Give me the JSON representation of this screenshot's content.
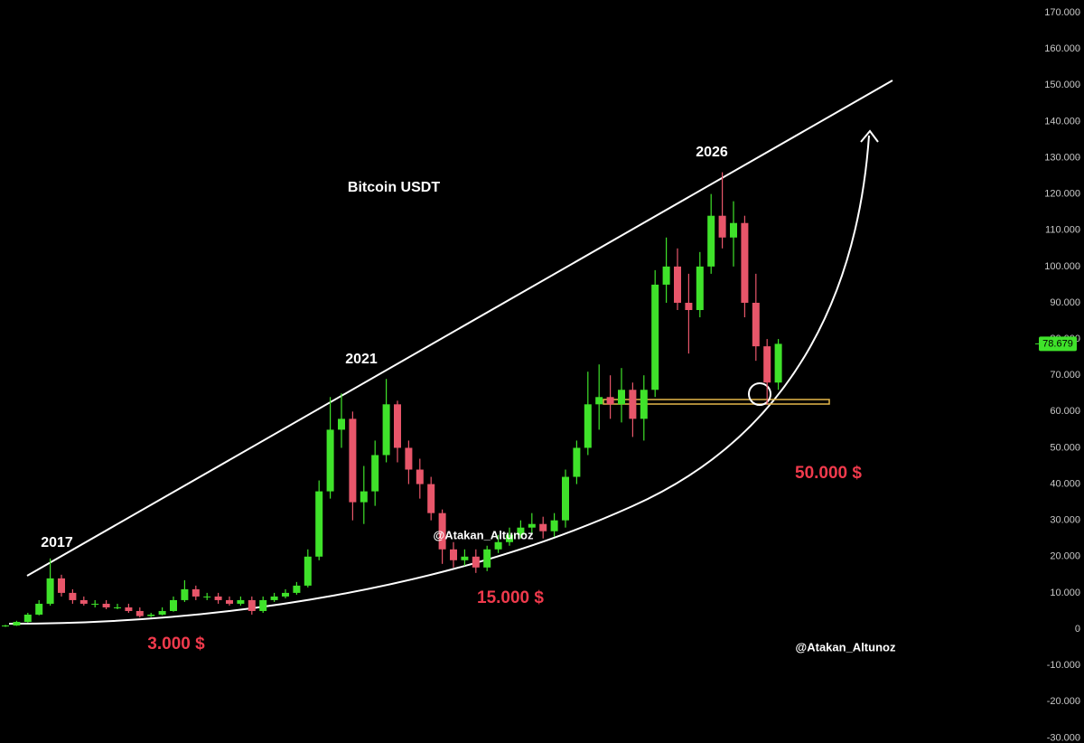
{
  "chart_data": {
    "type": "candlestick",
    "title": "Bitcoin USDT",
    "annotations": [
      "2017",
      "2021",
      "2026"
    ],
    "price_notes": [
      "3.000 $",
      "15.000 $",
      "50.000 $"
    ],
    "watermarks": [
      "@Atakan_Altunoz",
      "@Atakan_Altunoz"
    ],
    "up_color": "#3fe22a",
    "down_color": "#e8566a",
    "ylim": [
      -31400,
      173500
    ],
    "yticks": [
      {
        "value": 170000,
        "label": "170.000"
      },
      {
        "value": 160000,
        "label": "160.000"
      },
      {
        "value": 150000,
        "label": "150.000"
      },
      {
        "value": 140000,
        "label": "140.000"
      },
      {
        "value": 130000,
        "label": "130.000"
      },
      {
        "value": 120000,
        "label": "120.000"
      },
      {
        "value": 110000,
        "label": "110.000"
      },
      {
        "value": 100000,
        "label": "100.000"
      },
      {
        "value": 90000,
        "label": "90.000"
      },
      {
        "value": 80000,
        "label": "80.000"
      },
      {
        "value": 70000,
        "label": "70.000"
      },
      {
        "value": 60000,
        "label": "60.000"
      },
      {
        "value": 50000,
        "label": "50.000"
      },
      {
        "value": 40000,
        "label": "40.000"
      },
      {
        "value": 30000,
        "label": "30.000"
      },
      {
        "value": 20000,
        "label": "20.000"
      },
      {
        "value": 10000,
        "label": "10.000"
      },
      0,
      {
        "value": -10000,
        "label": "-10.000"
      },
      {
        "value": -20000,
        "label": "-20.000"
      },
      {
        "value": -30000,
        "label": "-30.000"
      }
    ],
    "last_price": {
      "value": 78679,
      "label": "78.679"
    },
    "open": [
      800,
      1000,
      2000,
      4000,
      7000,
      14000,
      10000,
      8000,
      7000,
      7000,
      6000,
      6000,
      5000,
      3600,
      4000,
      5000,
      8000,
      11000,
      9000,
      9000,
      8000,
      7000,
      8000,
      5000,
      8000,
      9000,
      10000,
      12000,
      20000,
      38000,
      55000,
      58000,
      35000,
      38000,
      48000,
      62000,
      50000,
      44000,
      40000,
      32000,
      22000,
      19000,
      20000,
      17000,
      22000,
      24000,
      26000,
      28000,
      29000,
      27000,
      30000,
      42000,
      50000,
      62000,
      64000,
      62000,
      66000,
      58000,
      66000,
      95000,
      100000,
      90000,
      88000,
      100000,
      114000,
      108000,
      112000,
      90000,
      78000,
      68000
    ],
    "high": [
      1200,
      2300,
      4500,
      8000,
      19500,
      15000,
      11000,
      9000,
      8000,
      8000,
      7000,
      7000,
      6000,
      4500,
      6000,
      9000,
      13500,
      12000,
      10000,
      10000,
      9000,
      9000,
      9000,
      9000,
      10000,
      11000,
      13000,
      22000,
      41000,
      64000,
      65000,
      60000,
      45000,
      52000,
      69000,
      63000,
      52000,
      47000,
      42000,
      33000,
      24000,
      22000,
      22000,
      23000,
      26000,
      28000,
      30000,
      32000,
      31000,
      32000,
      44000,
      52000,
      71000,
      73000,
      70000,
      72000,
      68000,
      70000,
      99000,
      108000,
      105000,
      98000,
      104000,
      120000,
      126000,
      118000,
      114000,
      98000,
      80000,
      80000
    ],
    "low": [
      600,
      900,
      1800,
      3800,
      6500,
      9000,
      7000,
      6500,
      6000,
      5500,
      5500,
      4500,
      3200,
      3300,
      3800,
      4800,
      7500,
      8000,
      8000,
      7000,
      6500,
      6500,
      4000,
      4500,
      7500,
      8500,
      9500,
      11500,
      19000,
      36000,
      50000,
      30000,
      29000,
      34000,
      46000,
      46000,
      40000,
      36000,
      30000,
      18000,
      17000,
      17500,
      15500,
      16000,
      21000,
      23000,
      25000,
      26000,
      25000,
      25500,
      28000,
      40000,
      48000,
      55000,
      58000,
      57000,
      53000,
      52000,
      64000,
      90000,
      88000,
      76000,
      86000,
      98000,
      105000,
      100000,
      86000,
      74000,
      62000,
      66000
    ],
    "close": [
      1000,
      2000,
      4000,
      7000,
      14000,
      10000,
      8000,
      7000,
      7000,
      6000,
      6000,
      5000,
      3600,
      4000,
      5000,
      8000,
      11000,
      9000,
      9000,
      8000,
      7000,
      8000,
      5000,
      8000,
      9000,
      10000,
      12000,
      20000,
      38000,
      55000,
      58000,
      35000,
      38000,
      48000,
      62000,
      50000,
      44000,
      40000,
      32000,
      22000,
      19000,
      20000,
      17000,
      22000,
      24000,
      26000,
      28000,
      29000,
      27000,
      30000,
      42000,
      50000,
      62000,
      64000,
      62000,
      66000,
      58000,
      66000,
      95000,
      100000,
      90000,
      88000,
      100000,
      114000,
      108000,
      112000,
      90000,
      78000,
      68000,
      78679
    ]
  }
}
